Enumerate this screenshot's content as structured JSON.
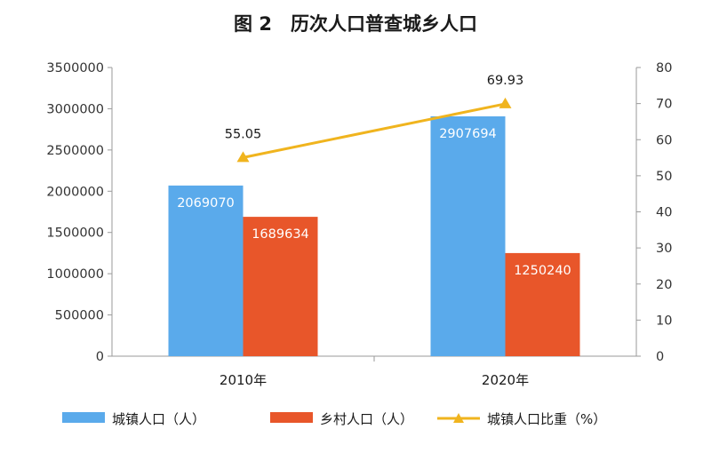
{
  "chart_data": {
    "type": "bar",
    "title": "图 2　历次人口普查城乡人口",
    "categories": [
      "2010年",
      "2020年"
    ],
    "series": [
      {
        "name": "城镇人口（人）",
        "type": "bar",
        "axis": "left",
        "color": "#5aaaeb",
        "values": [
          2069070,
          2907694
        ],
        "labels": [
          "2069070",
          "2907694"
        ]
      },
      {
        "name": "乡村人口（人）",
        "type": "bar",
        "axis": "left",
        "color": "#e8562a",
        "values": [
          1689634,
          1250240
        ],
        "labels": [
          "1689634",
          "1250240"
        ]
      },
      {
        "name": "城镇人口比重（%）",
        "type": "line",
        "axis": "right",
        "color": "#f0b41e",
        "values": [
          55.05,
          69.93
        ],
        "labels": [
          "55.05",
          "69.93"
        ]
      }
    ],
    "y_left": {
      "min": 0,
      "max": 3500000,
      "step": 500000,
      "ticks": [
        "0",
        "500000",
        "1000000",
        "1500000",
        "2000000",
        "2500000",
        "3000000",
        "3500000"
      ]
    },
    "y_right": {
      "min": 0,
      "max": 80,
      "step": 10,
      "ticks": [
        "0",
        "10",
        "20",
        "30",
        "40",
        "50",
        "60",
        "70",
        "80"
      ]
    },
    "legend_position": "bottom",
    "grid": false
  }
}
